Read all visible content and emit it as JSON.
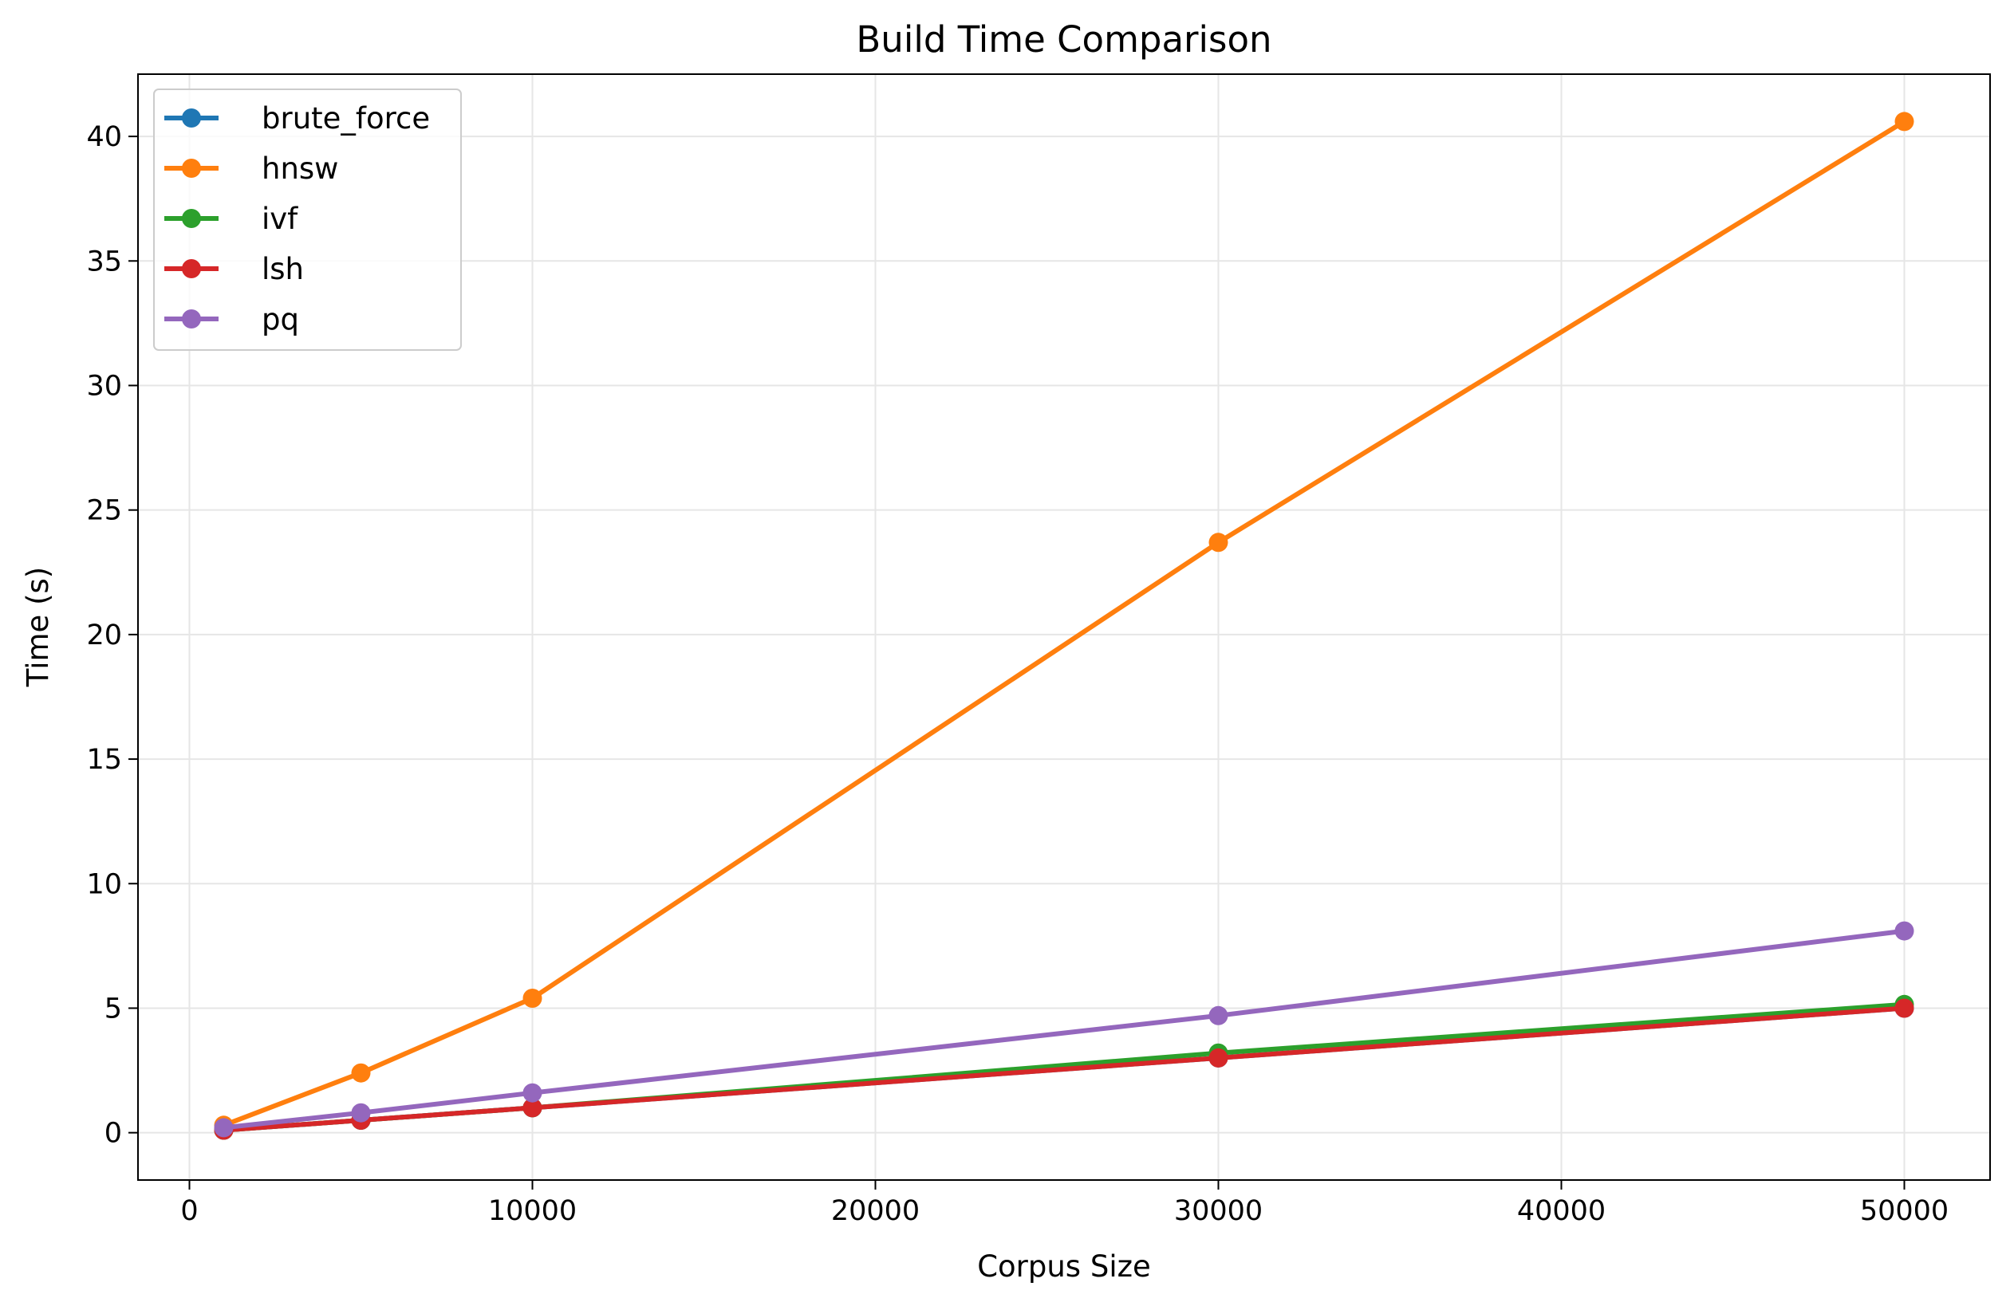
{
  "chart_data": {
    "type": "line",
    "title": "Build Time Comparison",
    "xlabel": "Corpus Size",
    "ylabel": "Time (s)",
    "x": [
      1000,
      5000,
      10000,
      30000,
      50000
    ],
    "xlim": [
      -1500,
      52500
    ],
    "ylim": [
      -1.9,
      42.5
    ],
    "xticks": [
      0,
      10000,
      20000,
      30000,
      40000,
      50000
    ],
    "yticks": [
      0,
      5,
      10,
      15,
      20,
      25,
      30,
      35,
      40
    ],
    "grid": true,
    "legend_position": "upper-left",
    "series": [
      {
        "name": "brute_force",
        "color": "#1f77b4",
        "values": [
          0.1,
          0.5,
          1.0,
          3.0,
          5.0
        ]
      },
      {
        "name": "hnsw",
        "color": "#ff7f0e",
        "values": [
          0.3,
          2.4,
          5.4,
          23.7,
          40.6
        ]
      },
      {
        "name": "ivf",
        "color": "#2ca02c",
        "values": [
          0.1,
          0.5,
          1.0,
          3.2,
          5.15
        ]
      },
      {
        "name": "lsh",
        "color": "#d62728",
        "values": [
          0.1,
          0.5,
          1.0,
          3.0,
          5.0
        ]
      },
      {
        "name": "pq",
        "color": "#9467bd",
        "values": [
          0.2,
          0.8,
          1.6,
          4.7,
          8.1
        ]
      }
    ]
  }
}
